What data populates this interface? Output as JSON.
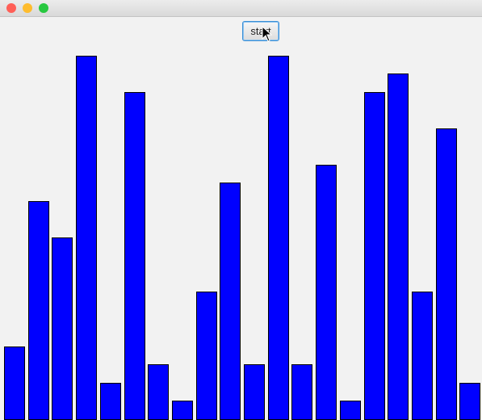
{
  "window": {
    "controls": [
      {
        "name": "close",
        "color": "#ff5f57"
      },
      {
        "name": "minimize",
        "color": "#febc2e"
      },
      {
        "name": "zoom",
        "color": "#28c840"
      }
    ]
  },
  "toolbar": {
    "start_label": "start"
  },
  "bars": {
    "fill_color": "#0000ff",
    "border_color": "#000000",
    "max_value": 20,
    "values": [
      4,
      12,
      10,
      20,
      2,
      18,
      3,
      1,
      7,
      13,
      3,
      20,
      3,
      14,
      1,
      18,
      19,
      7,
      16,
      2
    ]
  }
}
